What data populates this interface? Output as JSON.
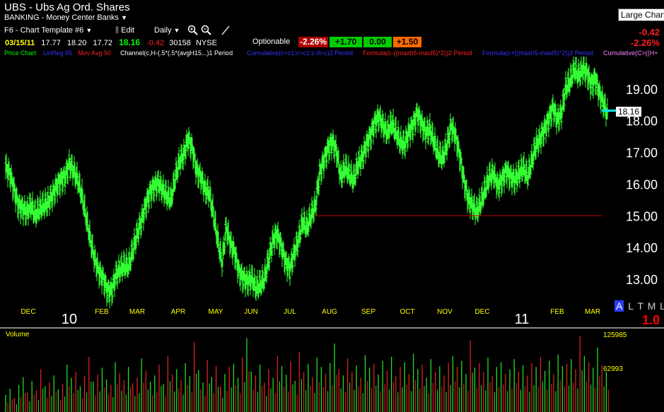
{
  "header": {
    "symbol_line": "UBS - Ubs Ag Ord. Shares",
    "industry": "BANKING - Money Center Banks",
    "template": "F6 - Chart Template #6",
    "edit_label": "Edit",
    "period_label": "Daily",
    "tooltip": "Large Chart",
    "net_change": "-0.42",
    "pct_change": "-2.26%"
  },
  "quote": {
    "date": "03/15/11",
    "open": "17.77",
    "high": "18.20",
    "low": "17.72",
    "last": "18.16",
    "change": "-0.42",
    "volume": "30158",
    "exchange": "NYSE",
    "optionable": "Optionable",
    "chips": [
      "-2.26%",
      "+1.70",
      "0.00",
      "+1.50"
    ]
  },
  "indicators": [
    {
      "label": "Price Chart",
      "color": "#00ff00"
    },
    {
      "label": "LinReg 65",
      "color": "#3333ff"
    },
    {
      "label": "Mov Avg 50",
      "color": "#ff2020"
    },
    {
      "label": "Channel(c,H-(.5*(.5*(avgH15...)1 Period",
      "color": "#ffffff"
    },
    {
      "label": "Cumulative(c>c1:c>c1:c-lh-c)2 Period",
      "color": "#3333ff"
    },
    {
      "label": "Formula(c-((maxh5-maxl5)*2))2 Period",
      "color": "#ff2020"
    },
    {
      "label": "Formula(c+((maxh5-maxl5)*2))2 Period",
      "color": "#3333ff"
    },
    {
      "label": "Cumulative(C>((H+",
      "color": "#ff80ff"
    }
  ],
  "price_badge": "18.16",
  "footer": {
    "buttons": [
      "A",
      "L",
      "T",
      "M",
      "L"
    ],
    "scale": "1.0"
  },
  "chart_data": {
    "type": "ohlc",
    "years": [
      "10",
      "11"
    ],
    "months": [
      "DEC",
      "FEB",
      "MAR",
      "APR",
      "MAY",
      "JUN",
      "JUL",
      "AUG",
      "SEP",
      "OCT",
      "NOV",
      "DEC",
      "FEB",
      "MAR"
    ],
    "y_ticks": [
      "19.00",
      "18.00",
      "17.00",
      "16.00",
      "15.00",
      "14.00",
      "13.00"
    ],
    "ylim": [
      12.2,
      20.0
    ],
    "horizontal_line": 14.98,
    "volume_label": "Volume",
    "volume_ticks": [
      "125985",
      "62993"
    ],
    "price_series": [
      [
        0,
        16.5
      ],
      [
        6,
        16.3
      ],
      [
        12,
        15.8
      ],
      [
        18,
        15.3
      ],
      [
        24,
        15.2
      ],
      [
        30,
        15.1
      ],
      [
        36,
        15.3
      ],
      [
        42,
        15.0
      ],
      [
        48,
        15.2
      ],
      [
        54,
        15.3
      ],
      [
        60,
        15.4
      ],
      [
        66,
        15.6
      ],
      [
        72,
        15.9
      ],
      [
        78,
        16.1
      ],
      [
        84,
        16.2
      ],
      [
        90,
        16.6
      ],
      [
        96,
        16.4
      ],
      [
        102,
        16.1
      ],
      [
        108,
        15.6
      ],
      [
        114,
        14.9
      ],
      [
        120,
        14.2
      ],
      [
        126,
        13.6
      ],
      [
        132,
        13.2
      ],
      [
        138,
        13.0
      ],
      [
        144,
        12.6
      ],
      [
        150,
        12.6
      ],
      [
        156,
        13.1
      ],
      [
        162,
        13.3
      ],
      [
        168,
        13.4
      ],
      [
        174,
        13.4
      ],
      [
        180,
        13.9
      ],
      [
        186,
        14.4
      ],
      [
        192,
        14.8
      ],
      [
        198,
        15.3
      ],
      [
        204,
        15.7
      ],
      [
        210,
        15.9
      ],
      [
        216,
        16.0
      ],
      [
        222,
        15.8
      ],
      [
        228,
        15.6
      ],
      [
        234,
        15.5
      ],
      [
        240,
        16.2
      ],
      [
        246,
        16.7
      ],
      [
        252,
        16.9
      ],
      [
        258,
        17.4
      ],
      [
        264,
        17.1
      ],
      [
        270,
        16.4
      ],
      [
        276,
        16.2
      ],
      [
        282,
        15.8
      ],
      [
        288,
        15.7
      ],
      [
        294,
        15.0
      ],
      [
        300,
        14.2
      ],
      [
        306,
        13.5
      ],
      [
        312,
        14.6
      ],
      [
        318,
        14.1
      ],
      [
        324,
        13.8
      ],
      [
        330,
        13.2
      ],
      [
        336,
        13.0
      ],
      [
        342,
        12.9
      ],
      [
        348,
        13.0
      ],
      [
        354,
        12.7
      ],
      [
        360,
        12.8
      ],
      [
        366,
        13.0
      ],
      [
        372,
        13.6
      ],
      [
        378,
        14.2
      ],
      [
        384,
        14.4
      ],
      [
        390,
        14.0
      ],
      [
        396,
        13.5
      ],
      [
        402,
        13.3
      ],
      [
        408,
        13.8
      ],
      [
        414,
        14.2
      ],
      [
        420,
        14.8
      ],
      [
        426,
        14.6
      ],
      [
        432,
        15.0
      ],
      [
        438,
        15.3
      ],
      [
        444,
        16.3
      ],
      [
        450,
        16.7
      ],
      [
        456,
        17.1
      ],
      [
        462,
        17.3
      ],
      [
        468,
        17.0
      ],
      [
        474,
        16.2
      ],
      [
        480,
        16.5
      ],
      [
        486,
        16.3
      ],
      [
        492,
        16.1
      ],
      [
        498,
        16.6
      ],
      [
        504,
        16.8
      ],
      [
        510,
        17.2
      ],
      [
        516,
        17.5
      ],
      [
        522,
        17.9
      ],
      [
        528,
        18.1
      ],
      [
        534,
        17.8
      ],
      [
        540,
        17.6
      ],
      [
        546,
        17.9
      ],
      [
        552,
        17.6
      ],
      [
        558,
        17.3
      ],
      [
        564,
        17.2
      ],
      [
        570,
        17.6
      ],
      [
        576,
        17.8
      ],
      [
        582,
        18.2
      ],
      [
        588,
        17.9
      ],
      [
        594,
        17.6
      ],
      [
        600,
        17.7
      ],
      [
        606,
        17.3
      ],
      [
        612,
        16.9
      ],
      [
        618,
        16.8
      ],
      [
        624,
        17.2
      ],
      [
        630,
        17.8
      ],
      [
        636,
        17.5
      ],
      [
        642,
        16.9
      ],
      [
        648,
        16.1
      ],
      [
        654,
        15.5
      ],
      [
        660,
        15.3
      ],
      [
        666,
        15.1
      ],
      [
        672,
        15.4
      ],
      [
        678,
        15.8
      ],
      [
        684,
        16.2
      ],
      [
        690,
        16.3
      ],
      [
        696,
        15.9
      ],
      [
        702,
        16.1
      ],
      [
        708,
        16.4
      ],
      [
        714,
        16.2
      ],
      [
        720,
        16.1
      ],
      [
        726,
        16.3
      ],
      [
        732,
        16.5
      ],
      [
        738,
        16.2
      ],
      [
        744,
        16.7
      ],
      [
        750,
        17.2
      ],
      [
        756,
        17.4
      ],
      [
        762,
        17.7
      ],
      [
        768,
        18.0
      ],
      [
        774,
        18.4
      ],
      [
        780,
        18.0
      ],
      [
        786,
        18.2
      ],
      [
        792,
        19.0
      ],
      [
        798,
        19.2
      ],
      [
        804,
        19.6
      ],
      [
        810,
        19.4
      ],
      [
        816,
        19.6
      ],
      [
        822,
        19.5
      ],
      [
        828,
        19.1
      ],
      [
        834,
        19.3
      ],
      [
        840,
        18.8
      ],
      [
        846,
        18.5
      ],
      [
        852,
        18.1
      ]
    ],
    "volume_series": [
      22,
      30,
      18,
      35,
      45,
      25,
      40,
      28,
      55,
      33,
      38,
      47,
      29,
      36,
      61,
      44,
      52,
      33,
      46,
      71,
      39,
      48,
      57,
      42,
      35,
      64,
      50,
      41,
      58,
      37,
      44,
      69,
      53,
      39,
      47,
      61,
      36,
      72,
      48,
      55,
      41,
      63,
      46,
      90,
      54,
      38,
      67,
      45,
      59,
      33,
      49,
      58,
      62,
      44,
      70,
      95,
      52,
      47,
      61,
      38,
      55,
      44,
      72,
      59,
      48,
      65,
      40,
      77,
      51,
      62,
      45,
      70,
      58,
      49,
      63,
      88,
      55,
      47,
      69,
      52,
      60,
      44,
      73,
      57,
      62,
      48,
      66,
      53,
      71,
      46,
      58,
      64,
      49,
      75,
      55,
      61,
      44,
      68,
      52,
      59,
      47,
      63,
      72,
      58,
      66,
      49,
      92,
      57,
      63,
      51,
      70,
      46,
      58,
      64,
      49,
      55,
      68,
      52,
      60,
      47,
      63,
      58,
      71,
      53,
      66,
      49,
      74,
      59,
      62,
      68,
      55,
      98,
      72,
      64,
      57,
      83,
      60,
      52
    ]
  }
}
